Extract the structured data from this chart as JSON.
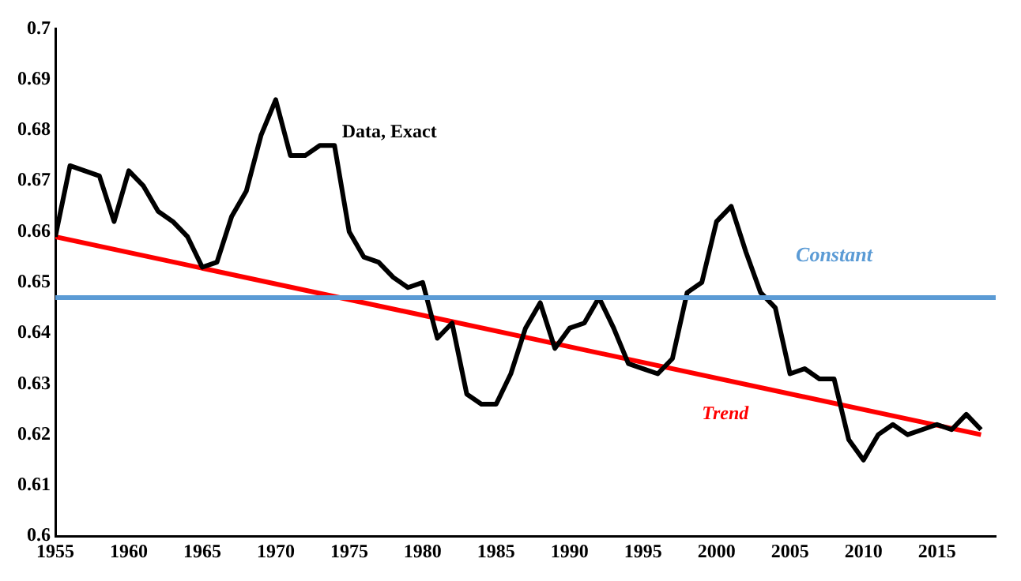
{
  "chart_data": {
    "type": "line",
    "xlim": [
      1955,
      2019
    ],
    "xticks": [
      1955,
      1960,
      1965,
      1970,
      1975,
      1980,
      1985,
      1990,
      1995,
      2000,
      2005,
      2010,
      2015
    ],
    "ylim": [
      0.6,
      0.7
    ],
    "yticks": [
      0.6,
      0.61,
      0.62,
      0.63,
      0.64,
      0.65,
      0.66,
      0.67,
      0.68,
      0.69,
      0.7
    ],
    "grid": false,
    "legend": false,
    "marker": "none",
    "line_style": "solid",
    "series": [
      {
        "name": "Data, Exact",
        "color": "#000000",
        "x": [
          1955,
          1956,
          1957,
          1958,
          1959,
          1960,
          1961,
          1962,
          1963,
          1964,
          1965,
          1966,
          1967,
          1968,
          1969,
          1970,
          1971,
          1972,
          1973,
          1974,
          1975,
          1976,
          1977,
          1978,
          1979,
          1980,
          1981,
          1982,
          1983,
          1984,
          1985,
          1986,
          1987,
          1988,
          1989,
          1990,
          1991,
          1992,
          1993,
          1994,
          1995,
          1996,
          1997,
          1998,
          1999,
          2000,
          2001,
          2002,
          2003,
          2004,
          2005,
          2006,
          2007,
          2008,
          2009,
          2010,
          2011,
          2012,
          2013,
          2014,
          2015,
          2016,
          2017,
          2018
        ],
        "values": [
          0.659,
          0.673,
          0.672,
          0.671,
          0.662,
          0.672,
          0.669,
          0.664,
          0.662,
          0.659,
          0.653,
          0.654,
          0.663,
          0.668,
          0.679,
          0.686,
          0.675,
          0.675,
          0.677,
          0.677,
          0.66,
          0.655,
          0.654,
          0.651,
          0.649,
          0.65,
          0.639,
          0.642,
          0.628,
          0.626,
          0.626,
          0.632,
          0.641,
          0.646,
          0.637,
          0.641,
          0.642,
          0.647,
          0.641,
          0.634,
          0.633,
          0.632,
          0.635,
          0.648,
          0.65,
          0.662,
          0.665,
          0.656,
          0.648,
          0.645,
          0.632,
          0.633,
          0.631,
          0.631,
          0.619,
          0.615,
          0.62,
          0.622,
          0.62,
          0.621,
          0.622,
          0.621,
          0.624,
          0.621
        ]
      },
      {
        "name": "Trend",
        "color": "#ff0000",
        "x": [
          1955,
          2018
        ],
        "values": [
          0.659,
          0.62
        ]
      }
    ],
    "ref_lines": [
      {
        "axis": "y",
        "value": 0.647,
        "label": "Constant",
        "color": "#5b9bd5"
      }
    ]
  }
}
